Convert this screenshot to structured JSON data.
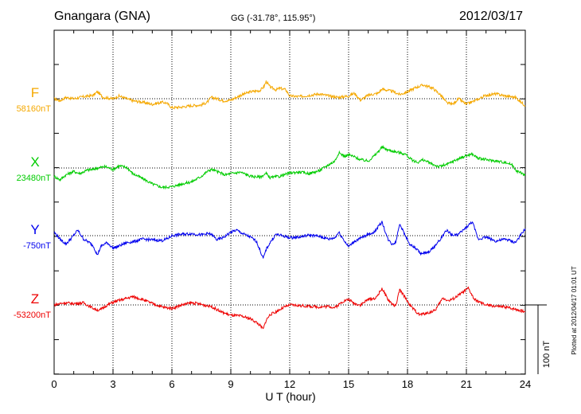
{
  "header": {
    "station": "Gnangara (GNA)",
    "coords": "GG (-31.78°, 115.95°)",
    "date": "2012/03/17"
  },
  "footer": {
    "plotted": "Plotted at 2012/04/17 01:01 UT"
  },
  "chart_data": {
    "type": "line",
    "title": "Gnangara (GNA)",
    "xlabel": "U T (hour)",
    "xlim": [
      0,
      24
    ],
    "xticks": [
      "0",
      "3",
      "6",
      "9",
      "12",
      "15",
      "18",
      "21",
      "24"
    ],
    "scale_bar": "100 nT",
    "grid": true,
    "series": [
      {
        "name": "F",
        "baseline_label": "58160nT",
        "baseline": 58160,
        "color": "#f5a800",
        "points": [
          [
            0,
            0
          ],
          [
            0.3,
            -3
          ],
          [
            0.6,
            2
          ],
          [
            1,
            0
          ],
          [
            1.5,
            3
          ],
          [
            2,
            5
          ],
          [
            2.2,
            10
          ],
          [
            2.5,
            2
          ],
          [
            3,
            0
          ],
          [
            3.3,
            4
          ],
          [
            3.7,
            0
          ],
          [
            4,
            -3
          ],
          [
            4.5,
            -5
          ],
          [
            5,
            -8
          ],
          [
            5.5,
            -5
          ],
          [
            5.7,
            -6
          ],
          [
            5.8,
            -8
          ],
          [
            6,
            -13
          ],
          [
            6.5,
            -12
          ],
          [
            7,
            -10
          ],
          [
            7.5,
            -9
          ],
          [
            7.8,
            -5
          ],
          [
            8,
            2
          ],
          [
            8.3,
            0
          ],
          [
            8.6,
            -3
          ],
          [
            9,
            -2
          ],
          [
            9.5,
            5
          ],
          [
            10,
            10
          ],
          [
            10.5,
            12
          ],
          [
            10.7,
            18
          ],
          [
            10.8,
            25
          ],
          [
            11,
            17
          ],
          [
            11.3,
            13
          ],
          [
            11.5,
            15
          ],
          [
            11.8,
            13
          ],
          [
            12,
            4
          ],
          [
            12.5,
            3
          ],
          [
            13,
            5
          ],
          [
            13.5,
            7
          ],
          [
            14,
            4
          ],
          [
            14.5,
            2
          ],
          [
            15,
            4
          ],
          [
            15.3,
            8
          ],
          [
            15.6,
            -2
          ],
          [
            16,
            5
          ],
          [
            16.5,
            8
          ],
          [
            16.7,
            14
          ],
          [
            17,
            12
          ],
          [
            17.3,
            10
          ],
          [
            17.6,
            6
          ],
          [
            18,
            10
          ],
          [
            18.4,
            16
          ],
          [
            18.8,
            20
          ],
          [
            19,
            18
          ],
          [
            19.3,
            15
          ],
          [
            19.7,
            5
          ],
          [
            20,
            -6
          ],
          [
            20.3,
            -8
          ],
          [
            20.6,
            0
          ],
          [
            21,
            -8
          ],
          [
            21.5,
            -2
          ],
          [
            22,
            5
          ],
          [
            22.5,
            7
          ],
          [
            23,
            4
          ],
          [
            23.5,
            2
          ],
          [
            24,
            -10
          ]
        ]
      },
      {
        "name": "X",
        "baseline_label": "23480nT",
        "baseline": 23480,
        "color": "#00cc00",
        "points": [
          [
            0,
            -12
          ],
          [
            0.3,
            -17
          ],
          [
            0.6,
            -10
          ],
          [
            1,
            -5
          ],
          [
            1.3,
            -8
          ],
          [
            1.7,
            -3
          ],
          [
            2,
            -2
          ],
          [
            2.2,
            0
          ],
          [
            2.6,
            2
          ],
          [
            3,
            -2
          ],
          [
            3.3,
            3
          ],
          [
            3.7,
            1
          ],
          [
            4,
            -8
          ],
          [
            4.5,
            -15
          ],
          [
            5,
            -23
          ],
          [
            5.5,
            -28
          ],
          [
            6,
            -27
          ],
          [
            6.5,
            -23
          ],
          [
            7,
            -20
          ],
          [
            7.5,
            -12
          ],
          [
            7.8,
            -5
          ],
          [
            8,
            -2
          ],
          [
            8.3,
            -5
          ],
          [
            8.7,
            -10
          ],
          [
            9,
            -8
          ],
          [
            9.5,
            -6
          ],
          [
            10,
            -12
          ],
          [
            10.5,
            -13
          ],
          [
            10.8,
            -8
          ],
          [
            11,
            -14
          ],
          [
            11.5,
            -12
          ],
          [
            12,
            -7
          ],
          [
            12.5,
            -6
          ],
          [
            13,
            -8
          ],
          [
            13.5,
            -4
          ],
          [
            14,
            5
          ],
          [
            14.3,
            10
          ],
          [
            14.5,
            22
          ],
          [
            14.8,
            17
          ],
          [
            15,
            19
          ],
          [
            15.3,
            16
          ],
          [
            15.6,
            12
          ],
          [
            16,
            10
          ],
          [
            16.4,
            20
          ],
          [
            16.7,
            30
          ],
          [
            17,
            26
          ],
          [
            17.3,
            24
          ],
          [
            17.6,
            22
          ],
          [
            17.9,
            20
          ],
          [
            18.2,
            12
          ],
          [
            18.5,
            8
          ],
          [
            18.8,
            12
          ],
          [
            19.2,
            6
          ],
          [
            19.6,
            2
          ],
          [
            20,
            5
          ],
          [
            20.5,
            12
          ],
          [
            21,
            18
          ],
          [
            21.3,
            20
          ],
          [
            21.6,
            14
          ],
          [
            22,
            12
          ],
          [
            22.5,
            10
          ],
          [
            23,
            8
          ],
          [
            23.3,
            5
          ],
          [
            23.6,
            -5
          ],
          [
            24,
            -10
          ]
        ]
      },
      {
        "name": "Y",
        "baseline_label": "-750nT",
        "baseline": -750,
        "color": "#0000ee",
        "points": [
          [
            0,
            5
          ],
          [
            0.3,
            -5
          ],
          [
            0.6,
            -12
          ],
          [
            0.9,
            -3
          ],
          [
            1.2,
            8
          ],
          [
            1.5,
            -5
          ],
          [
            1.8,
            -10
          ],
          [
            2,
            -15
          ],
          [
            2.2,
            -28
          ],
          [
            2.4,
            -15
          ],
          [
            2.7,
            -10
          ],
          [
            3,
            -18
          ],
          [
            3.3,
            -15
          ],
          [
            3.7,
            -10
          ],
          [
            4,
            -9
          ],
          [
            4.5,
            -5
          ],
          [
            5,
            -6
          ],
          [
            5.5,
            -7
          ],
          [
            5.8,
            -4
          ],
          [
            6,
            0
          ],
          [
            6.5,
            2
          ],
          [
            7,
            3
          ],
          [
            7.5,
            1
          ],
          [
            7.8,
            3
          ],
          [
            8,
            2
          ],
          [
            8.3,
            -6
          ],
          [
            8.6,
            -3
          ],
          [
            9,
            5
          ],
          [
            9.3,
            8
          ],
          [
            9.6,
            3
          ],
          [
            10,
            -2
          ],
          [
            10.3,
            -8
          ],
          [
            10.5,
            -22
          ],
          [
            10.65,
            -33
          ],
          [
            10.8,
            -20
          ],
          [
            11,
            -10
          ],
          [
            11.3,
            2
          ],
          [
            11.6,
            0
          ],
          [
            12,
            -3
          ],
          [
            12.5,
            -2
          ],
          [
            13,
            1
          ],
          [
            13.5,
            -1
          ],
          [
            14,
            -5
          ],
          [
            14.3,
            -3
          ],
          [
            14.5,
            5
          ],
          [
            14.8,
            -8
          ],
          [
            15,
            -16
          ],
          [
            15.3,
            -8
          ],
          [
            15.6,
            -4
          ],
          [
            16,
            2
          ],
          [
            16.3,
            5
          ],
          [
            16.7,
            20
          ],
          [
            17,
            -5
          ],
          [
            17.2,
            -12
          ],
          [
            17.4,
            -10
          ],
          [
            17.6,
            18
          ],
          [
            17.8,
            5
          ],
          [
            18.1,
            -12
          ],
          [
            18.4,
            -18
          ],
          [
            18.7,
            -26
          ],
          [
            19,
            -25
          ],
          [
            19.3,
            -18
          ],
          [
            19.6,
            -8
          ],
          [
            20,
            8
          ],
          [
            20.3,
            0
          ],
          [
            20.6,
            2
          ],
          [
            21,
            12
          ],
          [
            21.3,
            20
          ],
          [
            21.6,
            -5
          ],
          [
            22,
            -2
          ],
          [
            22.5,
            -8
          ],
          [
            23,
            -5
          ],
          [
            23.5,
            -10
          ],
          [
            24,
            10
          ]
        ]
      },
      {
        "name": "Z",
        "baseline_label": "-53200nT",
        "baseline": -53200,
        "color": "#ee0000",
        "points": [
          [
            0,
            0
          ],
          [
            0.5,
            3
          ],
          [
            1,
            2
          ],
          [
            1.5,
            3
          ],
          [
            2,
            -5
          ],
          [
            2.3,
            -8
          ],
          [
            2.6,
            -2
          ],
          [
            3,
            4
          ],
          [
            3.5,
            8
          ],
          [
            4,
            12
          ],
          [
            4.5,
            8
          ],
          [
            5,
            2
          ],
          [
            5.5,
            -3
          ],
          [
            6,
            -5
          ],
          [
            6.5,
            0
          ],
          [
            7,
            3
          ],
          [
            7.3,
            2
          ],
          [
            7.6,
            0
          ],
          [
            8,
            -2
          ],
          [
            8.5,
            -10
          ],
          [
            9,
            -15
          ],
          [
            9.5,
            -16
          ],
          [
            10,
            -20
          ],
          [
            10.3,
            -25
          ],
          [
            10.5,
            -30
          ],
          [
            10.65,
            -35
          ],
          [
            10.8,
            -22
          ],
          [
            11,
            -14
          ],
          [
            11.3,
            -10
          ],
          [
            11.6,
            -5
          ],
          [
            12,
            0
          ],
          [
            12.5,
            -1
          ],
          [
            13,
            -2
          ],
          [
            13.5,
            -3
          ],
          [
            14,
            -2
          ],
          [
            14.3,
            -4
          ],
          [
            14.7,
            5
          ],
          [
            15,
            8
          ],
          [
            15.3,
            2
          ],
          [
            15.6,
            0
          ],
          [
            16,
            8
          ],
          [
            16.4,
            10
          ],
          [
            16.7,
            24
          ],
          [
            17,
            8
          ],
          [
            17.2,
            2
          ],
          [
            17.4,
            -2
          ],
          [
            17.6,
            22
          ],
          [
            17.9,
            10
          ],
          [
            18.2,
            -3
          ],
          [
            18.6,
            -14
          ],
          [
            19,
            -12
          ],
          [
            19.4,
            -8
          ],
          [
            19.8,
            10
          ],
          [
            20.1,
            6
          ],
          [
            20.4,
            10
          ],
          [
            20.8,
            18
          ],
          [
            21.1,
            24
          ],
          [
            21.4,
            8
          ],
          [
            21.8,
            2
          ],
          [
            22,
            0
          ],
          [
            22.5,
            -2
          ],
          [
            23,
            -3
          ],
          [
            23.5,
            -6
          ],
          [
            24,
            -10
          ]
        ]
      }
    ]
  }
}
